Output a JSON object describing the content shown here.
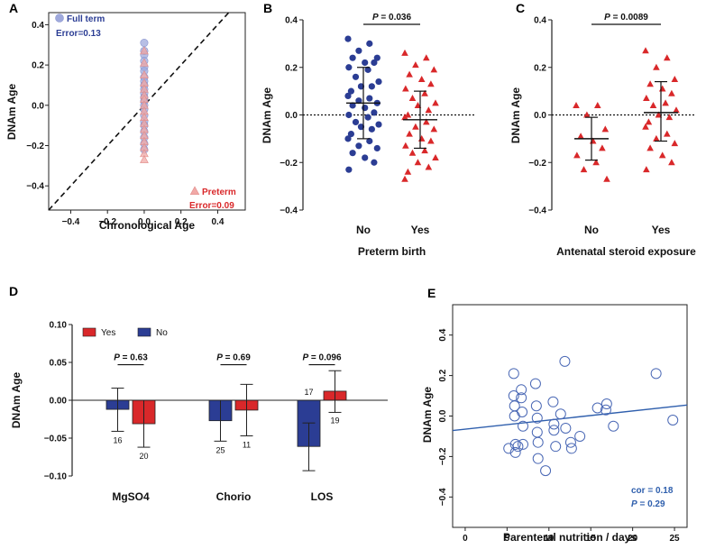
{
  "colors": {
    "blue": "#2b3d94",
    "red": "#d9282a",
    "light_blue": "#9fa9dc",
    "light_red": "#f1a9a7",
    "line_blue": "#2f5fad",
    "open_blue": "#4a68b5"
  },
  "charts": [
    {
      "panel_label": "A",
      "type": "scatter",
      "xlabel": "Chronological Age",
      "ylabel": "DNAm Age",
      "xlim": [
        -0.52,
        0.55
      ],
      "ylim": [
        -0.52,
        0.46
      ],
      "xticks": [
        -0.4,
        -0.2,
        0.0,
        0.2,
        0.4
      ],
      "yticks": [
        -0.4,
        -0.2,
        0.0,
        0.2,
        0.4
      ],
      "tick_labels_x": [
        "−0.4",
        "−0.2",
        "0.0",
        "0.2",
        "0.4"
      ],
      "tick_labels_y": [
        "−0.4",
        "−0.2",
        "0.0",
        "0.2",
        "0.4"
      ],
      "reference_line": "y = x (dashed)",
      "series": [
        {
          "name": "Full term",
          "error_label": "Error=0.13",
          "x": 0.0,
          "y": [
            0.31,
            0.27,
            0.25,
            0.22,
            0.19,
            0.17,
            0.14,
            0.12,
            0.1,
            0.08,
            0.06,
            0.04,
            0.02,
            0.0,
            -0.02,
            -0.05,
            -0.08,
            -0.1,
            -0.13,
            -0.16,
            -0.19,
            -0.22
          ]
        },
        {
          "name": "Preterm",
          "error_label": "Error=0.09",
          "x": 0.0,
          "y": [
            0.27,
            0.21,
            0.15,
            0.11,
            0.08,
            0.05,
            0.03,
            0.0,
            -0.03,
            -0.06,
            -0.09,
            -0.12,
            -0.15,
            -0.18,
            -0.21,
            -0.24,
            -0.27
          ]
        }
      ]
    },
    {
      "panel_label": "B",
      "type": "scatter",
      "xlabel": "Preterm birth",
      "ylabel": "DNAm Age",
      "categories": [
        "No",
        "Yes"
      ],
      "ylim": [
        -0.4,
        0.4
      ],
      "yticks": [
        -0.4,
        -0.2,
        0.0,
        0.2,
        0.4
      ],
      "tick_labels_y": [
        "−0.4",
        "−0.2",
        "0.0",
        "0.2",
        "0.4"
      ],
      "p_value": "= 0.036",
      "p_symbol": "P",
      "series": [
        {
          "name": "No",
          "values": [
            0.32,
            0.3,
            0.27,
            0.24,
            0.24,
            0.22,
            0.22,
            0.2,
            0.19,
            0.16,
            0.14,
            0.12,
            0.12,
            0.1,
            0.08,
            0.07,
            0.06,
            0.05,
            0.04,
            0.03,
            0.01,
            0.0,
            -0.01,
            -0.03,
            -0.04,
            -0.05,
            -0.06,
            -0.08,
            -0.1,
            -0.11,
            -0.13,
            -0.14,
            -0.16,
            -0.18,
            -0.2,
            -0.23
          ],
          "mean": 0.05,
          "sd_low": -0.1,
          "sd_high": 0.2
        },
        {
          "name": "Yes",
          "values": [
            0.26,
            0.24,
            0.21,
            0.19,
            0.17,
            0.15,
            0.13,
            0.11,
            0.09,
            0.07,
            0.05,
            0.04,
            0.02,
            0.0,
            -0.01,
            -0.03,
            -0.05,
            -0.06,
            -0.08,
            -0.1,
            -0.11,
            -0.13,
            -0.15,
            -0.16,
            -0.18,
            -0.2,
            -0.22,
            -0.24,
            -0.27
          ],
          "mean": -0.02,
          "sd_low": -0.14,
          "sd_high": 0.1
        }
      ]
    },
    {
      "panel_label": "C",
      "type": "scatter",
      "xlabel": "Antenatal steroid exposure",
      "ylabel": "DNAm Age",
      "categories": [
        "No",
        "Yes"
      ],
      "ylim": [
        -0.4,
        0.4
      ],
      "yticks": [
        -0.4,
        -0.2,
        0.0,
        0.2,
        0.4
      ],
      "tick_labels_y": [
        "−0.4",
        "−0.2",
        "0.0",
        "0.2",
        "0.4"
      ],
      "p_value": "= 0.0089",
      "p_symbol": "P",
      "series": [
        {
          "name": "No",
          "values": [
            0.04,
            0.04,
            0.0,
            -0.06,
            -0.09,
            -0.11,
            -0.14,
            -0.17,
            -0.2,
            -0.23,
            -0.27
          ],
          "mean": -0.1,
          "sd_low": -0.19,
          "sd_high": -0.01
        },
        {
          "name": "Yes",
          "values": [
            0.27,
            0.24,
            0.2,
            0.15,
            0.13,
            0.11,
            0.09,
            0.07,
            0.05,
            0.04,
            0.02,
            0.0,
            -0.01,
            -0.03,
            -0.05,
            -0.08,
            -0.1,
            -0.12,
            -0.14,
            -0.17,
            -0.2,
            -0.23
          ],
          "mean": 0.01,
          "sd_low": -0.11,
          "sd_high": 0.14
        }
      ]
    },
    {
      "panel_label": "D",
      "type": "bar",
      "ylabel": "DNAm Age",
      "ylim": [
        -0.1,
        0.1
      ],
      "yticks": [
        -0.1,
        -0.05,
        0.0,
        0.05,
        0.1
      ],
      "tick_labels_y": [
        "−0.10",
        "−0.05",
        "0.00",
        "0.05",
        "0.10"
      ],
      "categories": [
        "MgSO4",
        "Chorio",
        "LOS"
      ],
      "legend": [
        {
          "name": "Yes",
          "color": "#d9282a"
        },
        {
          "name": "No",
          "color": "#2b3d94"
        }
      ],
      "p_values": [
        "= 0.63",
        "= 0.69",
        "= 0.096"
      ],
      "p_symbol": "P",
      "series": [
        {
          "name": "No",
          "values": [
            -0.012,
            -0.027,
            -0.061
          ],
          "err_low": [
            -0.041,
            -0.054,
            -0.093
          ],
          "err_high": [
            0.016,
            0.0,
            -0.03
          ],
          "n": [
            "16",
            "25",
            "17"
          ]
        },
        {
          "name": "Yes",
          "values": [
            -0.031,
            -0.013,
            0.012
          ],
          "err_low": [
            -0.062,
            -0.047,
            -0.016
          ],
          "err_high": [
            0.0,
            0.021,
            0.039
          ],
          "n": [
            "20",
            "11",
            "19"
          ]
        }
      ]
    },
    {
      "panel_label": "E",
      "type": "scatter",
      "xlabel": "Parenteral nutrition / days",
      "ylabel": "DNAm Age",
      "xlim": [
        -1.5,
        26.5
      ],
      "ylim": [
        -0.55,
        0.55
      ],
      "xticks": [
        0,
        5,
        10,
        15,
        20,
        25
      ],
      "yticks": [
        -0.4,
        -0.2,
        0.0,
        0.2,
        0.4
      ],
      "tick_labels_x": [
        "0",
        "5",
        "10",
        "15",
        "20",
        "25"
      ],
      "tick_labels_y": [
        "−0.4",
        "−0.2",
        "0.0",
        "0.2",
        "0.4"
      ],
      "cor_label": "cor = 0.18",
      "p_value": "= 0.29",
      "p_symbol": "P",
      "fit_line": {
        "intercept": -0.065,
        "slope": 0.0045
      },
      "points": [
        [
          5.2,
          -0.16
        ],
        [
          5.8,
          0.21
        ],
        [
          5.8,
          0.1
        ],
        [
          5.9,
          0.05
        ],
        [
          5.9,
          0.0
        ],
        [
          6.0,
          -0.14
        ],
        [
          6.0,
          -0.18
        ],
        [
          6.3,
          -0.15
        ],
        [
          6.7,
          0.13
        ],
        [
          6.7,
          0.09
        ],
        [
          6.8,
          0.02
        ],
        [
          6.9,
          -0.05
        ],
        [
          6.9,
          -0.14
        ],
        [
          8.4,
          0.16
        ],
        [
          8.5,
          0.05
        ],
        [
          8.6,
          -0.01
        ],
        [
          8.6,
          -0.08
        ],
        [
          8.7,
          -0.13
        ],
        [
          8.7,
          -0.21
        ],
        [
          9.6,
          -0.27
        ],
        [
          10.5,
          0.07
        ],
        [
          10.6,
          -0.04
        ],
        [
          10.6,
          -0.07
        ],
        [
          10.8,
          -0.15
        ],
        [
          11.4,
          0.01
        ],
        [
          11.9,
          0.27
        ],
        [
          12.0,
          -0.06
        ],
        [
          12.6,
          -0.13
        ],
        [
          12.7,
          -0.16
        ],
        [
          13.7,
          -0.1
        ],
        [
          15.8,
          0.04
        ],
        [
          16.8,
          0.03
        ],
        [
          16.9,
          0.06
        ],
        [
          17.7,
          -0.05
        ],
        [
          22.8,
          0.21
        ],
        [
          24.8,
          -0.02
        ]
      ]
    }
  ]
}
